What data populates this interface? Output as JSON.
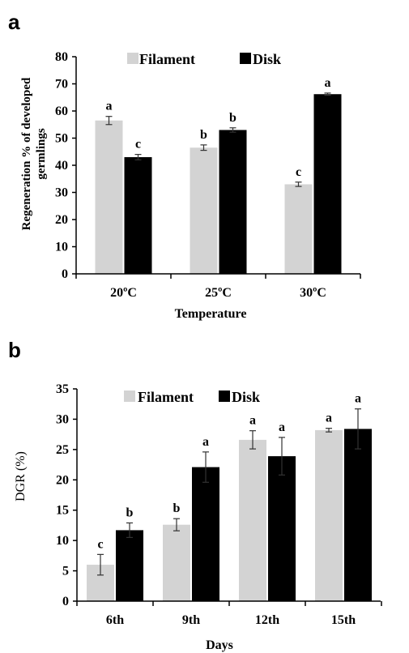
{
  "chart_data": [
    {
      "panel": "a",
      "type": "bar",
      "categories": [
        "20ºC",
        "25ºC",
        "30ºC"
      ],
      "series": [
        {
          "name": "Filament",
          "color": "#d3d3d3",
          "values": [
            56.5,
            46.5,
            33.0
          ],
          "errors": [
            1.5,
            1.0,
            0.8
          ],
          "letters": [
            "a",
            "b",
            "c"
          ]
        },
        {
          "name": "Disk",
          "color": "#000000",
          "values": [
            43.0,
            53.0,
            66.2
          ],
          "errors": [
            1.0,
            0.8,
            0.4
          ],
          "letters": [
            "c",
            "b",
            "a"
          ]
        }
      ],
      "xlabel": "Temperature",
      "ylabel_lines": [
        "Regeneration % of developed",
        "germlings"
      ],
      "ylim": [
        0,
        80
      ],
      "yticks": [
        "0",
        "10",
        "20",
        "30",
        "40",
        "50",
        "60",
        "70",
        "80"
      ],
      "legend_placement": "top-center",
      "grid": false
    },
    {
      "panel": "b",
      "type": "bar",
      "categories": [
        "6th",
        "9th",
        "12th",
        "15th"
      ],
      "series": [
        {
          "name": "Filament",
          "color": "#d3d3d3",
          "values": [
            6.0,
            12.6,
            26.6,
            28.2
          ],
          "errors": [
            1.7,
            1.0,
            1.5,
            0.3
          ],
          "letters": [
            "c",
            "b",
            "a",
            "a"
          ]
        },
        {
          "name": "Disk",
          "color": "#000000",
          "values": [
            11.7,
            22.1,
            23.9,
            28.4
          ],
          "errors": [
            1.2,
            2.5,
            3.1,
            3.3
          ],
          "letters": [
            "b",
            "a",
            "a",
            "a"
          ]
        }
      ],
      "xlabel": "Days",
      "ylabel": "DGR (%)",
      "ylim": [
        0,
        35
      ],
      "yticks": [
        "0",
        "5",
        "10",
        "15",
        "20",
        "25",
        "30",
        "35"
      ],
      "legend_placement": "top-left",
      "grid": false
    }
  ]
}
